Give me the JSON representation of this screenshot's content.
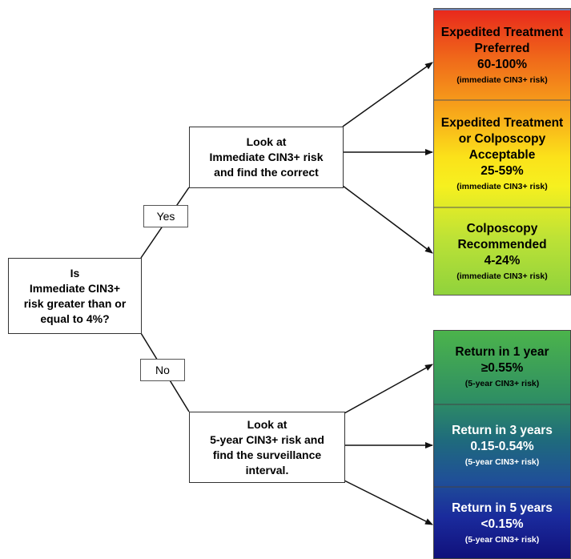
{
  "decision": {
    "lines": [
      "Is",
      "Immediate CIN3+",
      "risk greater than or",
      "equal to 4%?"
    ]
  },
  "yes_label": "Yes",
  "no_label": "No",
  "immediate_box": {
    "lines": [
      "Look at",
      "Immediate CIN3+ risk",
      "and find the correct"
    ]
  },
  "fiveyear_box": {
    "lines": [
      "Look at",
      "5-year CIN3+ risk and",
      "find the surveillance",
      "interval."
    ]
  },
  "treatment_panel": {
    "segments": [
      {
        "lines": [
          "Expedited Treatment",
          "Preferred",
          "60-100%"
        ],
        "sub": "(immediate CIN3+ risk)"
      },
      {
        "lines": [
          "Expedited Treatment",
          "or Colposcopy",
          "Acceptable",
          "25-59%"
        ],
        "sub": "(immediate CIN3+ risk)"
      },
      {
        "lines": [
          "Colposcopy",
          "Recommended",
          "4-24%"
        ],
        "sub": "(immediate CIN3+ risk)"
      }
    ]
  },
  "surveillance_panel": {
    "segments": [
      {
        "lines": [
          "Return in 1 year",
          "≥0.55%"
        ],
        "sub": "(5-year CIN3+ risk)"
      },
      {
        "lines": [
          "Return in 3 years",
          "0.15-0.54%"
        ],
        "sub": "(5-year CIN3+ risk)"
      },
      {
        "lines": [
          "Return in 5 years",
          "<0.15%"
        ],
        "sub": "(5-year CIN3+ risk)"
      }
    ]
  },
  "colors": {
    "treatment_gradient": [
      "#e8261c",
      "#f06a1a",
      "#f8ad1a",
      "#fbe21a",
      "#f6f01f",
      "#bde236",
      "#8fd23c"
    ],
    "surveillance_gradient": [
      "#4cb44b",
      "#2f8f63",
      "#1f6b7c",
      "#1f4f98",
      "#1a2a9c",
      "#10107a"
    ]
  }
}
